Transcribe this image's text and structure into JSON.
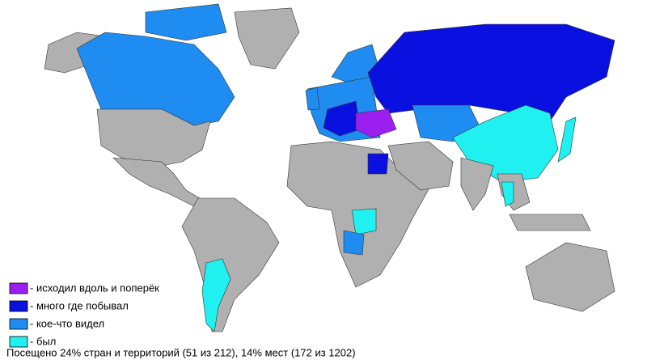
{
  "legend": [
    {
      "label": "- исходил вдоль и поперёк",
      "color": "#9b20f0"
    },
    {
      "label": "- много где побывал",
      "color": "#0a10e0"
    },
    {
      "label": "- кое-что видел",
      "color": "#1e8cf0"
    },
    {
      "label": "- был",
      "color": "#20f0f0"
    }
  ],
  "caption": "Посещено 24% стран и территорий (51 из 212), 14% мест (172 из 1202)"
}
